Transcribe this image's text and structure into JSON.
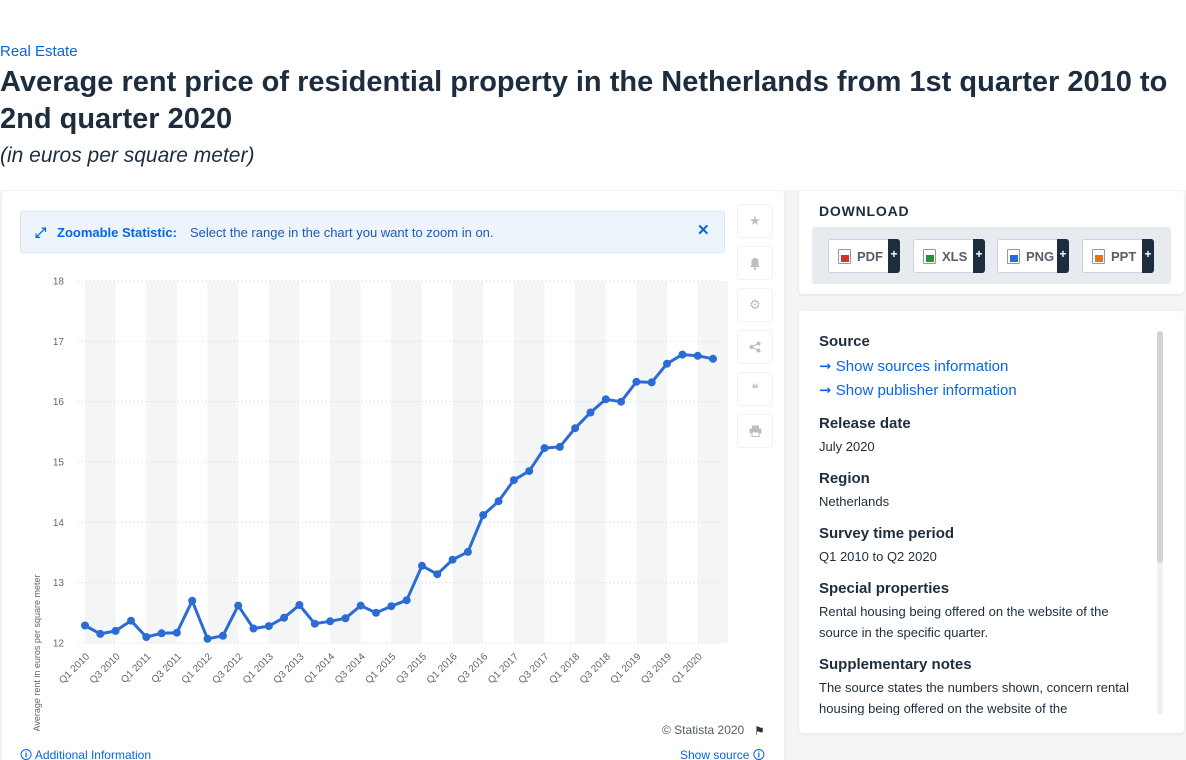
{
  "header": {
    "breadcrumb": "Real Estate",
    "title": "Average rent price of residential property in the Netherlands from 1st quarter 2010 to 2nd quarter 2020",
    "subtitle": "(in euros per square meter)"
  },
  "zoom_banner": {
    "bold": "Zoomable Statistic:",
    "text": "Select the range in the chart you want to zoom in on."
  },
  "chart_data": {
    "type": "line",
    "ylabel": "Average rent in euros per square meter",
    "ylim": [
      12,
      18
    ],
    "yticks": [
      12,
      13,
      14,
      15,
      16,
      17,
      18
    ],
    "grid": true,
    "color": "#2b6cd4",
    "x_labels_shown": [
      "Q1 2010",
      "Q3 2010",
      "Q1 2011",
      "Q3 2011",
      "Q1 2012",
      "Q3 2012",
      "Q1 2013",
      "Q3 2013",
      "Q1 2014",
      "Q3 2014",
      "Q1 2015",
      "Q3 2015",
      "Q1 2016",
      "Q3 2016",
      "Q1 2017",
      "Q3 2017",
      "Q1 2018",
      "Q3 2018",
      "Q1 2019",
      "Q3 2019",
      "Q1 2020"
    ],
    "categories": [
      "Q1 2010",
      "Q2 2010",
      "Q3 2010",
      "Q4 2010",
      "Q1 2011",
      "Q2 2011",
      "Q3 2011",
      "Q4 2011",
      "Q1 2012",
      "Q2 2012",
      "Q3 2012",
      "Q4 2012",
      "Q1 2013",
      "Q2 2013",
      "Q3 2013",
      "Q4 2013",
      "Q1 2014",
      "Q2 2014",
      "Q3 2014",
      "Q4 2014",
      "Q1 2015",
      "Q2 2015",
      "Q3 2015",
      "Q4 2015",
      "Q1 2016",
      "Q2 2016",
      "Q3 2016",
      "Q4 2016",
      "Q1 2017",
      "Q2 2017",
      "Q3 2017",
      "Q4 2017",
      "Q1 2018",
      "Q2 2018",
      "Q3 2018",
      "Q4 2018",
      "Q1 2019",
      "Q2 2019",
      "Q3 2019",
      "Q4 2019",
      "Q1 2020",
      "Q2 2020"
    ],
    "values": [
      12.29,
      12.15,
      12.2,
      12.37,
      12.1,
      12.16,
      12.17,
      12.7,
      12.07,
      12.12,
      12.62,
      12.24,
      12.28,
      12.42,
      12.63,
      12.32,
      12.36,
      12.41,
      12.62,
      12.5,
      12.61,
      12.71,
      13.28,
      13.14,
      13.38,
      13.51,
      14.12,
      14.35,
      14.7,
      14.85,
      15.23,
      15.25,
      15.56,
      15.82,
      16.04,
      16.0,
      16.33,
      16.32,
      16.63,
      16.78,
      16.76,
      16.71
    ]
  },
  "toolbar": {
    "icons": [
      "star-icon",
      "bell-icon",
      "gear-icon",
      "share-icon",
      "quote-icon",
      "print-icon"
    ]
  },
  "footer": {
    "credits": "© Statista 2020",
    "additional_info": "Additional Information",
    "show_source": "Show source"
  },
  "download": {
    "title": "DOWNLOAD",
    "buttons": [
      {
        "label": "PDF",
        "plus": "+",
        "color": "#d93025"
      },
      {
        "label": "XLS",
        "plus": "+",
        "color": "#2e8b3a"
      },
      {
        "label": "PNG",
        "plus": "+",
        "color": "#2b6cd4"
      },
      {
        "label": "PPT",
        "plus": "+",
        "color": "#e8711c"
      }
    ]
  },
  "info": {
    "source_head": "Source",
    "show_sources": "Show sources information",
    "show_publisher": "Show publisher information",
    "release_head": "Release date",
    "release_val": "July 2020",
    "region_head": "Region",
    "region_val": "Netherlands",
    "survey_head": "Survey time period",
    "survey_val": "Q1 2010 to Q2 2020",
    "special_head": "Special properties",
    "special_val": "Rental housing being offered on the website of the source in the specific quarter.",
    "supp_head": "Supplementary notes",
    "supp_val": "The source states the numbers shown, concern rental housing being offered on the website of the"
  }
}
